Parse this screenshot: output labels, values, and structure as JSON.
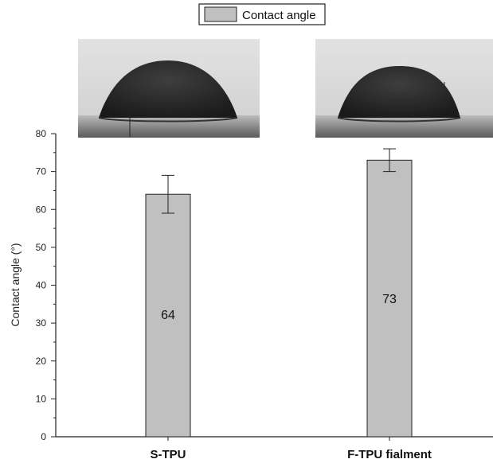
{
  "chart_data": {
    "type": "bar",
    "categories": [
      "S-TPU",
      "F-TPU fialment"
    ],
    "series": [
      {
        "name": "Contact angle",
        "values": [
          64,
          73
        ],
        "errors": [
          5,
          3
        ],
        "color": "#c0c0c0"
      }
    ],
    "data_labels": [
      "64",
      "73"
    ],
    "ylabel": "Contact angle (°)",
    "xlabel": "",
    "ylim": [
      0,
      80
    ],
    "yticks": [
      0,
      10,
      20,
      30,
      40,
      50,
      60,
      70,
      80
    ],
    "grid": false,
    "legend_position": "top-center",
    "inset_images": [
      "water-droplet-photo",
      "water-droplet-photo"
    ]
  }
}
